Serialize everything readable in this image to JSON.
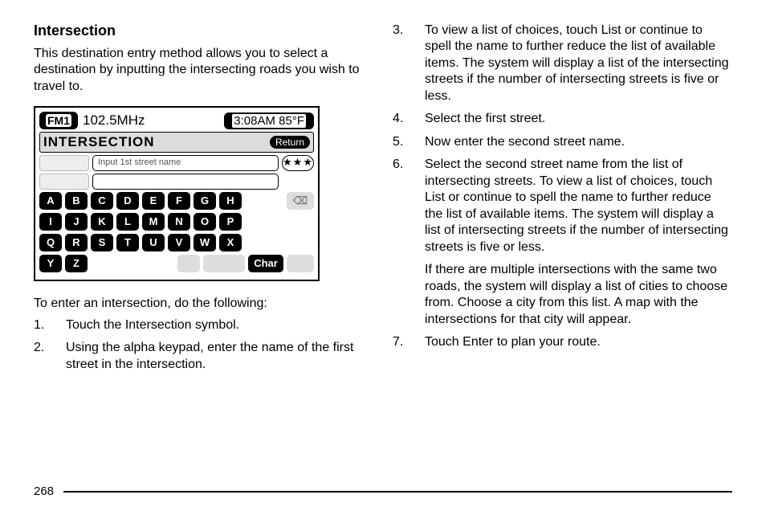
{
  "heading": "Intersection",
  "intro_para": "This destination entry method allows you to select a destination by inputting the intersecting roads you wish to travel to.",
  "device": {
    "fm_label": "FM1",
    "freq": "102.5MHz",
    "time": "3:08AM 85°F",
    "screen_title": "INTERSECTION",
    "return_label": "Return",
    "placeholder1": "Input 1st street name",
    "stars": "★★★",
    "keys_row1": [
      "A",
      "B",
      "C",
      "D",
      "E",
      "F",
      "G",
      "H"
    ],
    "keys_row2": [
      "I",
      "J",
      "K",
      "L",
      "M",
      "N",
      "O",
      "P"
    ],
    "keys_row3": [
      "Q",
      "R",
      "S",
      "T",
      "U",
      "V",
      "W",
      "X"
    ],
    "keys_row4": [
      "Y",
      "Z"
    ],
    "char_label": "Char"
  },
  "lead_in": "To enter an intersection, do the following:",
  "steps_left": [
    {
      "n": "1.",
      "t": "Touch the Intersection symbol."
    },
    {
      "n": "2.",
      "t": "Using the alpha keypad, enter the name of the first street in the intersection."
    }
  ],
  "steps_right": [
    {
      "n": "3.",
      "t": "To view a list of choices, touch List or continue to spell the name to further reduce the list of available items. The system will display a list of the intersecting streets if the number of intersecting streets is five or less."
    },
    {
      "n": "4.",
      "t": "Select the first street."
    },
    {
      "n": "5.",
      "t": "Now enter the second street name."
    },
    {
      "n": "6.",
      "t": "Select the second street name from the list of intersecting streets. To view a list of choices, touch List or continue to spell the name to further reduce the list of available items. The system will display a list of intersecting streets if the number of intersecting streets is five or less."
    },
    {
      "n": "7.",
      "t": "Touch Enter to plan your route."
    }
  ],
  "step6_extra": "If there are multiple intersections with the same two roads, the system will display a list of cities to choose from. Choose a city from this list. A map with the intersections for that city will appear.",
  "page_number": "268"
}
